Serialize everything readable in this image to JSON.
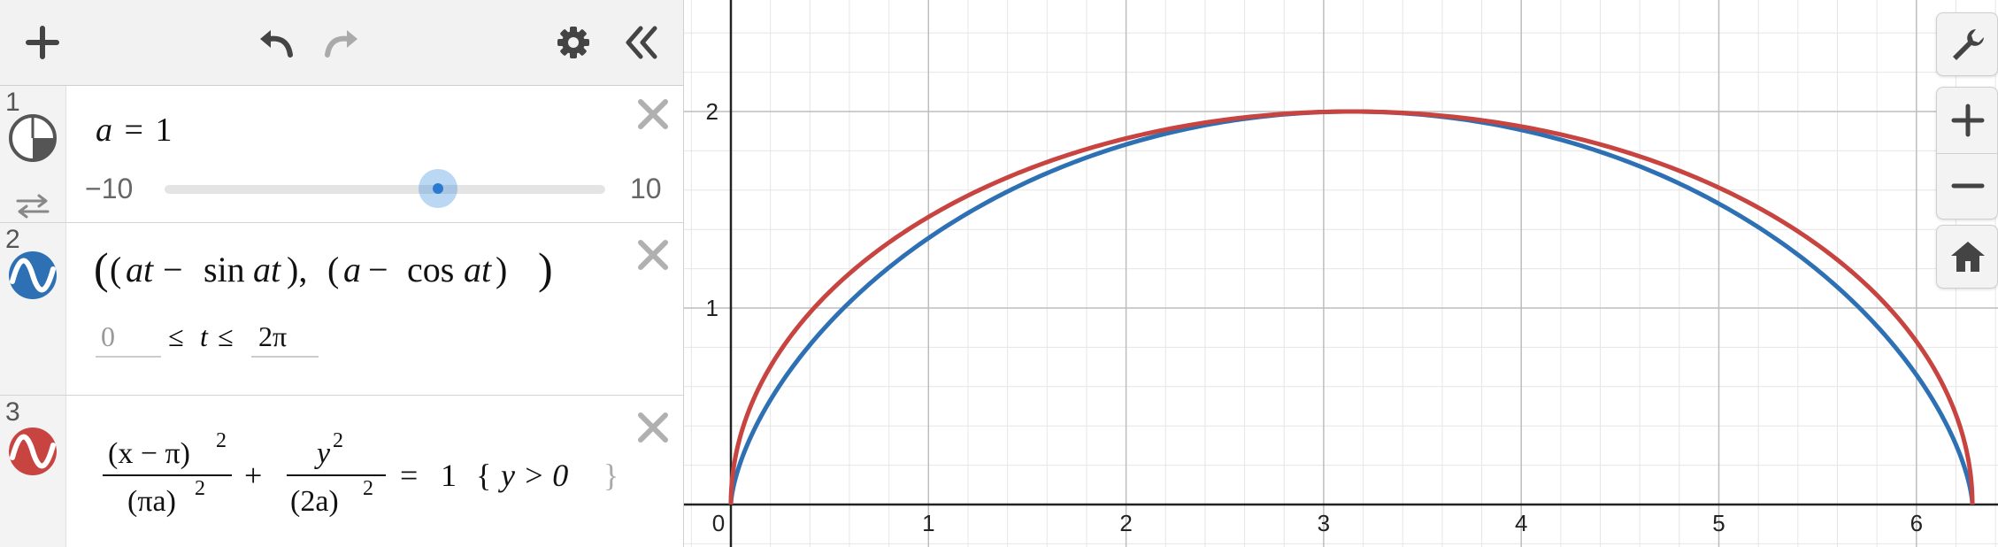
{
  "colors": {
    "blue": "#2d70b3",
    "red": "#c74440",
    "accent": "#3a8dde"
  },
  "toolbar": {
    "add": "plus-icon",
    "undo": "undo-icon",
    "redo": "redo-icon",
    "settings": "gear-icon",
    "collapse": "double-chevron-left-icon"
  },
  "expressions": [
    {
      "number": "1",
      "var": "a",
      "eq": "=",
      "value": "1",
      "slider_min": "−10",
      "slider_max": "10",
      "slider_value": 1
    },
    {
      "number": "2",
      "param_low": "0",
      "param_le1": "≤",
      "param_var": "t",
      "param_le2": "≤",
      "param_high": "2π"
    },
    {
      "number": "3",
      "num1": "(x − π)",
      "den1": "(πa)",
      "num2": "y",
      "den2": "(2a)",
      "exp": "2",
      "plus": "+",
      "eq": "=",
      "rhs": "1",
      "restriction": "y > 0"
    }
  ],
  "graph": {
    "x_ticks": [
      "0",
      "1",
      "2",
      "3",
      "4",
      "5",
      "6"
    ],
    "y_ticks": [
      "1",
      "2"
    ]
  },
  "right_toolbar": {
    "wrench": "wrench-icon",
    "zoom_in": "plus-icon",
    "zoom_out": "minus-icon",
    "home": "home-icon"
  }
}
